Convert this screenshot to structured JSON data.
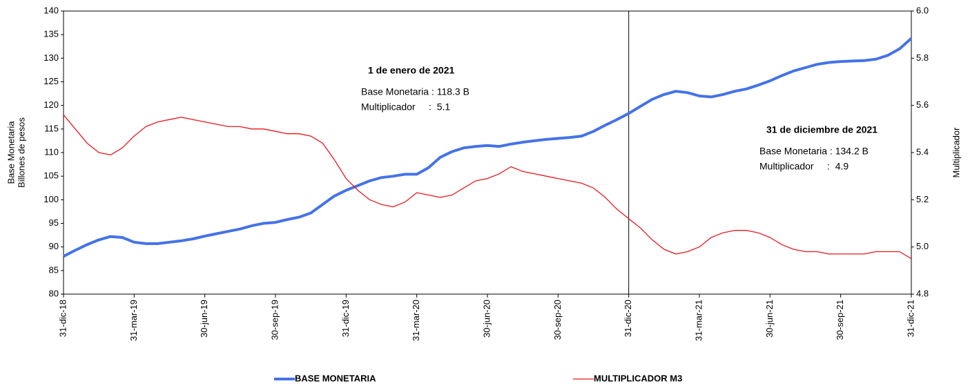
{
  "chart_data": {
    "type": "line",
    "y_label": [
      "Base Monetaria",
      "Billones de pesos"
    ],
    "y2_label": "Multiplicador",
    "categories": [
      "31-dic-18",
      null,
      null,
      null,
      null,
      null,
      "31-mar-19",
      null,
      null,
      null,
      null,
      null,
      "30-jun-19",
      null,
      null,
      null,
      null,
      null,
      "30-sep-19",
      null,
      null,
      null,
      null,
      null,
      "31-dic-19",
      null,
      null,
      null,
      null,
      null,
      "31-mar-20",
      null,
      null,
      null,
      null,
      null,
      "30-jun-20",
      null,
      null,
      null,
      null,
      null,
      "30-sep-20",
      null,
      null,
      null,
      null,
      null,
      "31-dic-20",
      null,
      null,
      null,
      null,
      null,
      "31-mar-21",
      null,
      null,
      null,
      null,
      null,
      "30-jun-21",
      null,
      null,
      null,
      null,
      null,
      "30-sep-21",
      null,
      null,
      null,
      null,
      null,
      "31-dic-21"
    ],
    "series": [
      {
        "name": "BASE MONETARIA",
        "color": "#4472e8",
        "axis": "y",
        "values": [
          88,
          89.3,
          90.5,
          91.5,
          92.2,
          92,
          91,
          90.7,
          90.7,
          91,
          91.3,
          91.7,
          92.3,
          92.8,
          93.3,
          93.8,
          94.5,
          95,
          95.2,
          95.8,
          96.3,
          97.2,
          99,
          100.8,
          102,
          103,
          104,
          104.7,
          105,
          105.4,
          105.4,
          106.8,
          109,
          110.2,
          111,
          111.3,
          111.5,
          111.3,
          111.8,
          112.2,
          112.5,
          112.8,
          113,
          113.2,
          113.5,
          114.5,
          115.8,
          117,
          118.3,
          119.8,
          121.3,
          122.3,
          123,
          122.7,
          122,
          121.8,
          122.3,
          123,
          123.5,
          124.3,
          125.2,
          126.3,
          127.3,
          128,
          128.7,
          129.1,
          129.3,
          129.4,
          129.5,
          129.8,
          130.6,
          132,
          134.2
        ]
      },
      {
        "name": "MULTIPLICADOR M3",
        "color": "#e8161b",
        "axis": "y2",
        "values": [
          5.56,
          5.5,
          5.44,
          5.4,
          5.39,
          5.42,
          5.47,
          5.51,
          5.53,
          5.54,
          5.55,
          5.54,
          5.53,
          5.52,
          5.51,
          5.51,
          5.5,
          5.5,
          5.49,
          5.48,
          5.48,
          5.47,
          5.44,
          5.37,
          5.29,
          5.24,
          5.2,
          5.18,
          5.17,
          5.19,
          5.23,
          5.22,
          5.21,
          5.22,
          5.25,
          5.28,
          5.29,
          5.31,
          5.34,
          5.32,
          5.31,
          5.3,
          5.29,
          5.28,
          5.27,
          5.25,
          5.21,
          5.16,
          5.12,
          5.08,
          5.03,
          4.99,
          4.97,
          4.98,
          5,
          5.04,
          5.06,
          5.07,
          5.07,
          5.06,
          5.04,
          5.01,
          4.99,
          4.98,
          4.98,
          4.97,
          4.97,
          4.97,
          4.97,
          4.98,
          4.98,
          4.98,
          4.95
        ]
      }
    ],
    "ylim": [
      80,
      140
    ],
    "yticks": [
      80,
      85,
      90,
      95,
      100,
      105,
      110,
      115,
      120,
      125,
      130,
      135,
      140
    ],
    "y2lim": [
      4.8,
      6
    ],
    "y2ticks": [
      4.8,
      {
        "value": 5,
        "label": "5.0"
      },
      5.2,
      5.4,
      5.6,
      5.8,
      {
        "value": 6,
        "label": "6.0"
      }
    ],
    "vline_at": "31-dic-20",
    "annotations": [
      {
        "title": "1 de enero de 2021",
        "lines": [
          "Base Monetaria : 118.3 B",
          "Multiplicador     :  5.1"
        ]
      },
      {
        "title": "31 de diciembre de 2021",
        "lines": [
          "Base Monetaria : 134.2 B",
          "Multiplicador     :  4.9"
        ]
      }
    ]
  }
}
